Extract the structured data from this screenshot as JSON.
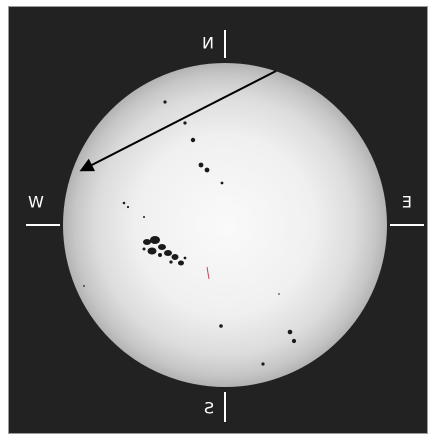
{
  "directions": {
    "north": "N",
    "south": "S",
    "east": "E",
    "west": "W"
  },
  "colors": {
    "background": "#222222",
    "disk_center": "#fafafa",
    "disk_limb": "#b3b3b3",
    "spots": "#1a1a1a",
    "arrow": "#000000",
    "labels": "#ffffff"
  },
  "image_properties": {
    "labels_mirrored": true
  }
}
